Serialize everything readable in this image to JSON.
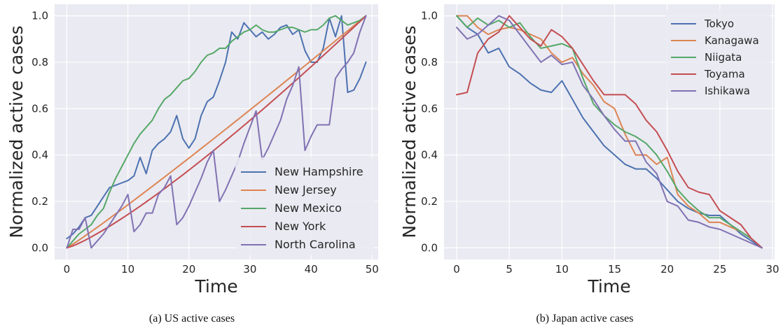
{
  "figure": {
    "colors": [
      "#4c72b0",
      "#dd8452",
      "#55a868",
      "#c44e52",
      "#8172b3"
    ]
  },
  "chart_data": [
    {
      "type": "line",
      "caption": "(a)  US active cases",
      "xlabel": "Time",
      "ylabel": "Normalized active cases",
      "xlim": [
        -2,
        51
      ],
      "ylim": [
        -0.05,
        1.05
      ],
      "xticks": [
        0,
        10,
        20,
        30,
        40,
        50
      ],
      "yticks": [
        0.0,
        0.2,
        0.4,
        0.6,
        0.8,
        1.0
      ],
      "legend_position": "lower-right",
      "series": [
        {
          "name": "New Hampshire",
          "x": [
            0,
            1,
            2,
            3,
            4,
            5,
            6,
            7,
            8,
            9,
            10,
            11,
            12,
            13,
            14,
            15,
            16,
            17,
            18,
            19,
            20,
            21,
            22,
            23,
            24,
            25,
            26,
            27,
            28,
            29,
            30,
            31,
            32,
            33,
            34,
            35,
            36,
            37,
            38,
            39,
            40,
            41,
            42,
            43,
            44,
            45,
            46,
            47,
            48,
            49
          ],
          "values": [
            0.04,
            0.06,
            0.09,
            0.13,
            0.14,
            0.18,
            0.22,
            0.26,
            0.27,
            0.28,
            0.29,
            0.31,
            0.39,
            0.32,
            0.42,
            0.45,
            0.47,
            0.5,
            0.57,
            0.47,
            0.43,
            0.47,
            0.57,
            0.63,
            0.65,
            0.72,
            0.8,
            0.93,
            0.9,
            0.97,
            0.94,
            0.91,
            0.93,
            0.9,
            0.92,
            0.95,
            0.96,
            0.92,
            0.94,
            0.85,
            0.8,
            0.8,
            0.86,
            0.99,
            0.91,
            1.0,
            0.67,
            0.68,
            0.73,
            0.8
          ]
        },
        {
          "name": "New Jersey",
          "x": [
            0,
            49
          ],
          "values": [
            0.0,
            1.0
          ],
          "curve": "convex_slight"
        },
        {
          "name": "New Mexico",
          "x": [
            0,
            1,
            2,
            3,
            4,
            5,
            6,
            7,
            8,
            9,
            10,
            11,
            12,
            13,
            14,
            15,
            16,
            17,
            18,
            19,
            20,
            21,
            22,
            23,
            24,
            25,
            26,
            27,
            28,
            29,
            30,
            31,
            32,
            33,
            34,
            35,
            36,
            37,
            38,
            39,
            40,
            41,
            42,
            43,
            44,
            45,
            46,
            47,
            48,
            49
          ],
          "values": [
            0.0,
            0.03,
            0.06,
            0.08,
            0.1,
            0.14,
            0.17,
            0.24,
            0.3,
            0.35,
            0.4,
            0.45,
            0.49,
            0.52,
            0.55,
            0.6,
            0.64,
            0.66,
            0.69,
            0.72,
            0.73,
            0.76,
            0.8,
            0.83,
            0.84,
            0.86,
            0.86,
            0.89,
            0.91,
            0.93,
            0.94,
            0.96,
            0.94,
            0.93,
            0.93,
            0.94,
            0.95,
            0.95,
            0.94,
            0.93,
            0.94,
            0.94,
            0.96,
            0.99,
            1.0,
            0.98,
            0.96,
            0.97,
            0.98,
            1.0
          ]
        },
        {
          "name": "New York",
          "x": [
            0,
            49
          ],
          "values": [
            0.0,
            1.0
          ],
          "curve": "convex"
        },
        {
          "name": "North Carolina",
          "x": [
            0,
            1,
            2,
            3,
            4,
            5,
            6,
            7,
            8,
            9,
            10,
            11,
            12,
            13,
            14,
            15,
            16,
            17,
            18,
            19,
            20,
            21,
            22,
            23,
            24,
            25,
            26,
            27,
            28,
            29,
            30,
            31,
            32,
            33,
            34,
            35,
            36,
            37,
            38,
            39,
            40,
            41,
            42,
            43,
            44,
            45,
            46,
            47,
            48,
            49
          ],
          "values": [
            0.0,
            0.08,
            0.08,
            0.13,
            0.0,
            0.03,
            0.06,
            0.1,
            0.14,
            0.18,
            0.23,
            0.07,
            0.1,
            0.15,
            0.15,
            0.23,
            0.26,
            0.31,
            0.1,
            0.13,
            0.18,
            0.24,
            0.3,
            0.37,
            0.42,
            0.2,
            0.25,
            0.31,
            0.37,
            0.45,
            0.52,
            0.59,
            0.38,
            0.43,
            0.49,
            0.55,
            0.64,
            0.7,
            0.78,
            0.42,
            0.48,
            0.53,
            0.53,
            0.53,
            0.73,
            0.77,
            0.8,
            0.84,
            0.93,
            1.0
          ]
        }
      ]
    },
    {
      "type": "line",
      "caption": "(b)  Japan active cases",
      "xlabel": "Time",
      "ylabel": "Normalized active cases",
      "xlim": [
        -1.2,
        30.2
      ],
      "ylim": [
        -0.05,
        1.05
      ],
      "xticks": [
        0,
        5,
        10,
        15,
        20,
        25,
        30
      ],
      "yticks": [
        0.0,
        0.2,
        0.4,
        0.6,
        0.8,
        1.0
      ],
      "legend_position": "top-right",
      "series": [
        {
          "name": "Tokyo",
          "x": [
            0,
            1,
            2,
            3,
            4,
            5,
            6,
            7,
            8,
            9,
            10,
            11,
            12,
            13,
            14,
            15,
            16,
            17,
            18,
            19,
            20,
            21,
            22,
            23,
            24,
            25,
            26,
            27,
            28,
            29
          ],
          "values": [
            1.0,
            0.95,
            0.92,
            0.84,
            0.86,
            0.78,
            0.75,
            0.71,
            0.68,
            0.67,
            0.72,
            0.64,
            0.56,
            0.5,
            0.44,
            0.4,
            0.36,
            0.34,
            0.34,
            0.3,
            0.25,
            0.2,
            0.17,
            0.15,
            0.14,
            0.14,
            0.1,
            0.06,
            0.03,
            0.0
          ]
        },
        {
          "name": "Kanagawa",
          "x": [
            0,
            1,
            2,
            3,
            4,
            5,
            6,
            7,
            8,
            9,
            10,
            11,
            12,
            13,
            14,
            15,
            16,
            17,
            18,
            19,
            20,
            21,
            22,
            23,
            24,
            25,
            26,
            27,
            28,
            29
          ],
          "values": [
            1.0,
            1.0,
            0.95,
            0.92,
            0.94,
            0.95,
            0.94,
            0.92,
            0.9,
            0.84,
            0.8,
            0.82,
            0.75,
            0.7,
            0.63,
            0.6,
            0.49,
            0.4,
            0.4,
            0.36,
            0.39,
            0.23,
            0.18,
            0.15,
            0.11,
            0.11,
            0.09,
            0.07,
            0.04,
            0.0
          ]
        },
        {
          "name": "Niigata",
          "x": [
            0,
            1,
            2,
            3,
            4,
            5,
            6,
            7,
            8,
            9,
            10,
            11,
            12,
            13,
            14,
            15,
            16,
            17,
            18,
            19,
            20,
            21,
            22,
            23,
            24,
            25,
            26,
            27,
            28,
            29
          ],
          "values": [
            1.0,
            0.95,
            0.99,
            0.96,
            0.98,
            0.95,
            0.97,
            0.91,
            0.86,
            0.87,
            0.88,
            0.86,
            0.73,
            0.62,
            0.57,
            0.53,
            0.5,
            0.48,
            0.45,
            0.4,
            0.33,
            0.25,
            0.2,
            0.16,
            0.13,
            0.13,
            0.1,
            0.07,
            0.04,
            0.0
          ]
        },
        {
          "name": "Toyama",
          "x": [
            0,
            1,
            2,
            3,
            4,
            5,
            6,
            7,
            8,
            9,
            10,
            11,
            12,
            13,
            14,
            15,
            16,
            17,
            18,
            19,
            20,
            21,
            22,
            23,
            24,
            25,
            26,
            27,
            28,
            29
          ],
          "values": [
            0.66,
            0.67,
            0.84,
            0.9,
            0.93,
            1.0,
            0.95,
            0.9,
            0.87,
            0.94,
            0.91,
            0.86,
            0.79,
            0.72,
            0.66,
            0.66,
            0.66,
            0.62,
            0.55,
            0.5,
            0.42,
            0.33,
            0.26,
            0.24,
            0.23,
            0.16,
            0.13,
            0.1,
            0.04,
            0.0
          ]
        },
        {
          "name": "Ishikawa",
          "x": [
            0,
            1,
            2,
            3,
            4,
            5,
            6,
            7,
            8,
            9,
            10,
            11,
            12,
            13,
            14,
            15,
            16,
            17,
            18,
            19,
            20,
            21,
            22,
            23,
            24,
            25,
            26,
            27,
            28,
            29
          ],
          "values": [
            0.95,
            0.9,
            0.92,
            0.96,
            1.0,
            0.98,
            0.92,
            0.86,
            0.8,
            0.83,
            0.79,
            0.8,
            0.7,
            0.64,
            0.57,
            0.51,
            0.46,
            0.46,
            0.37,
            0.32,
            0.2,
            0.18,
            0.12,
            0.11,
            0.09,
            0.08,
            0.06,
            0.04,
            0.02,
            0.0
          ]
        }
      ]
    }
  ]
}
